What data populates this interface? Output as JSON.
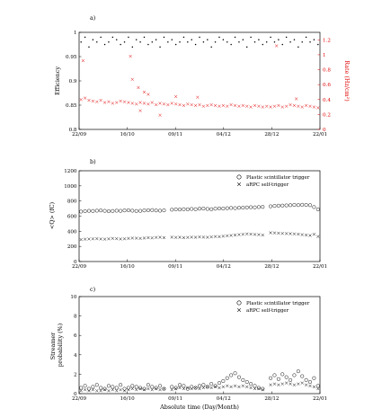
{
  "colors": {
    "axis": "#000000",
    "secondary": "#e00000",
    "plastic_marker": "#000000",
    "arpc_marker": "#000000"
  },
  "chart_data": [
    {
      "id": "a",
      "panel_label": "a)",
      "type": "scatter",
      "x_ticks": [
        "22/09",
        "16/10",
        "09/11",
        "04/12",
        "28/12",
        "22/01"
      ],
      "y_ticks": [
        "0.8",
        "0.85",
        "0.9",
        "0.95",
        "1"
      ],
      "y2_ticks": [
        "0",
        "0.2",
        "0.4",
        "0.6",
        "0.8",
        "1",
        "1.2"
      ],
      "ylabel": "Efficiency",
      "y2label": "Rate (Hz/cm²)",
      "xlim": [
        0,
        122
      ],
      "ylim": [
        0.8,
        1.0
      ],
      "y2lim": [
        0,
        1.3
      ],
      "grid": false,
      "series": [
        {
          "axis": "left",
          "marker": "dot",
          "color": "#000000",
          "x": [
            1,
            3,
            5,
            7,
            9,
            11,
            13,
            15,
            17,
            19,
            21,
            23,
            25,
            27,
            29,
            31,
            33,
            35,
            37,
            39,
            41,
            43,
            45,
            47,
            49,
            51,
            53,
            55,
            57,
            59,
            61,
            63,
            65,
            67,
            69,
            71,
            73,
            75,
            77,
            79,
            81,
            83,
            85,
            87,
            89,
            91,
            93,
            95,
            97,
            99,
            101,
            103,
            105,
            107,
            109,
            111,
            113,
            115,
            117,
            119,
            121
          ],
          "y": [
            0.98,
            0.99,
            0.97,
            0.985,
            0.98,
            0.99,
            0.975,
            0.98,
            0.99,
            0.985,
            0.975,
            0.98,
            0.99,
            0.97,
            0.985,
            0.98,
            0.99,
            0.975,
            0.98,
            0.985,
            0.97,
            0.99,
            0.98,
            0.985,
            0.975,
            0.98,
            0.99,
            0.98,
            0.985,
            0.975,
            0.99,
            0.98,
            0.985,
            0.97,
            0.98,
            0.99,
            0.985,
            0.98,
            0.975,
            0.99,
            0.98,
            0.985,
            0.97,
            0.99,
            0.98,
            0.985,
            0.975,
            0.98,
            0.99,
            0.98,
            0.985,
            0.975,
            0.99,
            0.98,
            0.985,
            0.97,
            0.98,
            0.99,
            0.98,
            0.985,
            0.975
          ]
        },
        {
          "axis": "right",
          "marker": "x",
          "color": "#e00000",
          "x": [
            1,
            3,
            5,
            7,
            9,
            11,
            13,
            15,
            17,
            19,
            21,
            23,
            25,
            27,
            29,
            31,
            33,
            35,
            37,
            39,
            41,
            43,
            45,
            47,
            49,
            51,
            53,
            55,
            57,
            59,
            61,
            63,
            65,
            67,
            69,
            71,
            73,
            75,
            77,
            79,
            81,
            83,
            85,
            87,
            89,
            91,
            93,
            95,
            97,
            99,
            101,
            103,
            105,
            107,
            109,
            111,
            113,
            115,
            117,
            119,
            121
          ],
          "y": [
            0.4,
            0.42,
            0.39,
            0.38,
            0.37,
            0.39,
            0.36,
            0.37,
            0.35,
            0.36,
            0.38,
            0.37,
            0.36,
            0.35,
            0.34,
            0.36,
            0.35,
            0.34,
            0.36,
            0.33,
            0.35,
            0.34,
            0.33,
            0.35,
            0.34,
            0.33,
            0.32,
            0.34,
            0.33,
            0.32,
            0.33,
            0.31,
            0.32,
            0.33,
            0.32,
            0.31,
            0.32,
            0.31,
            0.33,
            0.32,
            0.31,
            0.32,
            0.31,
            0.3,
            0.32,
            0.31,
            0.3,
            0.31,
            0.3,
            0.31,
            0.32,
            0.3,
            0.31,
            0.33,
            0.32,
            0.31,
            0.3,
            0.32,
            0.31,
            0.3,
            0.29
          ]
        },
        {
          "axis": "right",
          "marker": "x",
          "color": "#e00000",
          "x": [
            2,
            26,
            27,
            30,
            31,
            33,
            35,
            41,
            49,
            60,
            100,
            110
          ],
          "y": [
            0.92,
            0.98,
            0.67,
            0.56,
            0.25,
            0.5,
            0.47,
            0.19,
            0.44,
            0.43,
            1.12,
            0.41
          ]
        }
      ]
    },
    {
      "id": "b",
      "panel_label": "b)",
      "type": "scatter",
      "x_ticks": [
        "22/09",
        "16/10",
        "09/11",
        "04/12",
        "28/12",
        "22/01"
      ],
      "y_ticks": [
        "0",
        "200",
        "400",
        "600",
        "800",
        "1000",
        "1200"
      ],
      "ylabel": "<Q> (fC)",
      "xlim": [
        0,
        122
      ],
      "ylim": [
        0,
        1200
      ],
      "grid": false,
      "legend": "top-right",
      "series": [
        {
          "name": "Plastic scintillator trigger",
          "marker": "circle",
          "color": "#000000",
          "x": [
            1,
            3,
            5,
            7,
            9,
            11,
            13,
            15,
            17,
            19,
            21,
            23,
            25,
            27,
            29,
            31,
            33,
            35,
            37,
            39,
            41,
            43,
            47,
            49,
            51,
            53,
            55,
            57,
            59,
            61,
            63,
            65,
            67,
            69,
            71,
            73,
            75,
            77,
            79,
            81,
            83,
            85,
            87,
            89,
            91,
            93,
            97,
            99,
            101,
            103,
            105,
            107,
            109,
            111,
            113,
            115,
            117,
            119,
            121
          ],
          "y": [
            660,
            665,
            670,
            668,
            672,
            675,
            670,
            665,
            668,
            672,
            670,
            675,
            678,
            672,
            668,
            670,
            675,
            678,
            680,
            675,
            672,
            676,
            685,
            690,
            688,
            692,
            690,
            695,
            692,
            698,
            700,
            695,
            692,
            698,
            702,
            700,
            705,
            708,
            706,
            710,
            712,
            715,
            718,
            716,
            720,
            722,
            730,
            735,
            738,
            740,
            742,
            745,
            748,
            746,
            750,
            748,
            745,
            720,
            690
          ]
        },
        {
          "name": "aRPC self-trigger",
          "marker": "x",
          "color": "#000000",
          "x": [
            1,
            3,
            5,
            7,
            9,
            11,
            13,
            15,
            17,
            19,
            21,
            23,
            25,
            27,
            29,
            31,
            33,
            35,
            37,
            39,
            41,
            43,
            47,
            49,
            51,
            53,
            55,
            57,
            59,
            61,
            63,
            65,
            67,
            69,
            71,
            73,
            75,
            77,
            79,
            81,
            83,
            85,
            87,
            89,
            91,
            93,
            97,
            99,
            101,
            103,
            105,
            107,
            109,
            111,
            113,
            115,
            117,
            119,
            121
          ],
          "y": [
            290,
            295,
            298,
            300,
            302,
            298,
            295,
            300,
            305,
            302,
            298,
            300,
            305,
            310,
            308,
            305,
            310,
            315,
            312,
            318,
            320,
            315,
            322,
            318,
            320,
            315,
            318,
            322,
            320,
            325,
            322,
            320,
            325,
            330,
            328,
            335,
            340,
            345,
            350,
            355,
            360,
            365,
            362,
            358,
            355,
            350,
            380,
            378,
            375,
            372,
            370,
            368,
            365,
            362,
            355,
            350,
            345,
            360,
            330
          ]
        }
      ]
    },
    {
      "id": "c",
      "panel_label": "c)",
      "type": "scatter",
      "x_ticks": [
        "22/09",
        "16/10",
        "09/11",
        "04/12",
        "28/12",
        "22/01"
      ],
      "y_ticks": [
        "0",
        "2",
        "4",
        "6",
        "8",
        "10"
      ],
      "ylabel": "Streamer probability (%)",
      "xlabel": "Absolute time (Day/Month)",
      "xlim": [
        0,
        122
      ],
      "ylim": [
        0,
        10
      ],
      "grid": false,
      "legend": "top-right",
      "series": [
        {
          "name": "Plastic scintillator trigger",
          "marker": "circle",
          "color": "#000000",
          "x": [
            1,
            3,
            5,
            7,
            9,
            11,
            13,
            15,
            17,
            19,
            21,
            23,
            25,
            27,
            29,
            31,
            33,
            35,
            37,
            39,
            41,
            43,
            47,
            49,
            51,
            53,
            55,
            57,
            59,
            61,
            63,
            65,
            67,
            69,
            71,
            73,
            75,
            77,
            79,
            81,
            83,
            85,
            87,
            89,
            91,
            93,
            97,
            99,
            101,
            103,
            105,
            107,
            109,
            111,
            113,
            115,
            117,
            119,
            121
          ],
          "y": [
            0.6,
            0.8,
            0.5,
            0.7,
            0.9,
            0.6,
            0.5,
            0.8,
            0.7,
            0.6,
            0.9,
            0.5,
            0.6,
            0.8,
            0.7,
            0.6,
            0.5,
            0.9,
            0.7,
            0.6,
            0.8,
            0.5,
            0.7,
            0.6,
            0.9,
            0.8,
            0.5,
            0.7,
            0.6,
            0.8,
            0.9,
            0.7,
            1.0,
            0.8,
            1.1,
            1.3,
            1.6,
            1.9,
            2.1,
            1.7,
            1.4,
            1.2,
            1.0,
            0.8,
            0.6,
            0.5,
            1.6,
            1.9,
            1.5,
            2.0,
            1.7,
            1.4,
            1.9,
            2.3,
            1.8,
            1.4,
            1.2,
            1.6,
            0.8
          ]
        },
        {
          "name": "aRPC self-trigger",
          "marker": "x",
          "color": "#000000",
          "x": [
            1,
            3,
            5,
            7,
            9,
            11,
            13,
            15,
            17,
            19,
            21,
            23,
            25,
            27,
            29,
            31,
            33,
            35,
            37,
            39,
            41,
            43,
            47,
            49,
            51,
            53,
            55,
            57,
            59,
            61,
            63,
            65,
            67,
            69,
            71,
            73,
            75,
            77,
            79,
            81,
            83,
            85,
            87,
            89,
            91,
            93,
            97,
            99,
            101,
            103,
            105,
            107,
            109,
            111,
            113,
            115,
            117,
            119,
            121
          ],
          "y": [
            0.3,
            0.4,
            0.3,
            0.4,
            0.3,
            0.3,
            0.4,
            0.3,
            0.4,
            0.3,
            0.4,
            0.3,
            0.4,
            0.5,
            0.4,
            0.5,
            0.4,
            0.5,
            0.4,
            0.5,
            0.4,
            0.5,
            0.4,
            0.5,
            0.6,
            0.5,
            0.6,
            0.5,
            0.6,
            0.5,
            0.6,
            0.7,
            0.6,
            0.7,
            0.6,
            0.7,
            0.8,
            0.7,
            0.8,
            0.7,
            0.8,
            0.7,
            0.6,
            0.5,
            0.5,
            0.4,
            0.9,
            1.0,
            0.9,
            1.0,
            1.1,
            1.0,
            0.9,
            1.0,
            1.1,
            0.9,
            0.8,
            0.7,
            0.5
          ]
        }
      ]
    }
  ]
}
